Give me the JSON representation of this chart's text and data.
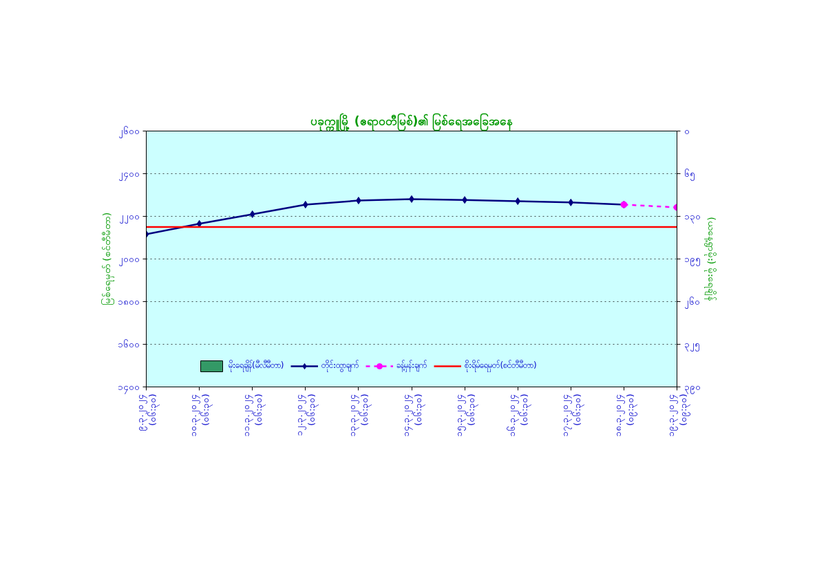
{
  "chart_data": {
    "type": "line",
    "title": "ပခုက္ကူမြို့ (ဧရာဝတီမြစ်)၏ မြစ်ရေအခြေအနေ",
    "ylabel": "မြစ်ရေမှတ် (စင်တီမီတာ)",
    "y2label": "(ယနေ့ရွာမိုး) မိုးရေချိန်",
    "categories": [
      "၉.၃.၂၀၂၄\n(၀၆:၃၀)",
      "၁၀.၃.၂၀၂၄\n(၀၆:၃၀)",
      "၁၁.၃.၂၀၂၄\n(၀၆:၃၀)",
      "၁၂.၃.၂၀၂၄\n(၀၆:၃၀)",
      "၁၃.၃.၂၀၂၄\n(၀၆:၃၀)",
      "၁၄.၃.၂၀၂၄\n(၀၆:၃၀)",
      "၁၅.၃.၂၀၂၄\n(၀၆:၃၀)",
      "၁၆.၃.၂၀၂၄\n(၀၆:၃၀)",
      "၁၇.၃.၂၀၂၄\n(၀၆:၃၀)",
      "၁၈.၃.၂၀၂၄\n(၀၉:၃၀)",
      "၁၉.၃.၂၀၂၄\n(၀၉:၃၀)"
    ],
    "ylim": [
      1400,
      2600
    ],
    "yticks": [
      {
        "value": 1400,
        "label": "၁၄၀၀"
      },
      {
        "value": 1600,
        "label": "၁၆၀၀"
      },
      {
        "value": 1800,
        "label": "၁၈၀၀"
      },
      {
        "value": 2000,
        "label": "၂၀၀၀"
      },
      {
        "value": 2200,
        "label": "၂၂၀၀"
      },
      {
        "value": 2400,
        "label": "၂၄၀၀"
      },
      {
        "value": 2600,
        "label": "၂၆၀၀"
      }
    ],
    "y2lim": [
      390,
      0
    ],
    "y2ticks": [
      {
        "value": 0,
        "label": "၀"
      },
      {
        "value": 65,
        "label": "၆၅"
      },
      {
        "value": 130,
        "label": "၁၃၀"
      },
      {
        "value": 195,
        "label": "၁၉၅"
      },
      {
        "value": 260,
        "label": "၂၆၀"
      },
      {
        "value": 325,
        "label": "၃၂၅"
      },
      {
        "value": 390,
        "label": "၃၉၀"
      }
    ],
    "grid": "y",
    "legend": "bottom",
    "series": [
      {
        "name": "မိုးရေချိန်(မီလီမီတာ)",
        "type": "bar",
        "color": "#339966",
        "values": [
          null,
          null,
          null,
          null,
          null,
          null,
          null,
          null,
          null,
          null,
          null
        ]
      },
      {
        "name": "တိုင်းထွာချက်",
        "color": "#000080",
        "marker": "diamond",
        "line_style": "solid",
        "values": [
          2116,
          2165,
          2210,
          2255,
          2274,
          2281,
          2277,
          2271,
          2265,
          2255,
          null
        ]
      },
      {
        "name": "ခန့်မှန်းချက်",
        "color": "#ff00ff",
        "marker": "circle",
        "line_style": "dashed",
        "values": [
          null,
          null,
          null,
          null,
          null,
          null,
          null,
          null,
          null,
          2255,
          2242
        ]
      },
      {
        "name": "စိုးရိမ်ရေမှတ်(စင်တီမီတာ)",
        "color": "#ff0000",
        "marker": "none",
        "line_style": "solid",
        "values": [
          2150,
          2150,
          2150,
          2150,
          2150,
          2150,
          2150,
          2150,
          2150,
          2150,
          2150
        ]
      }
    ]
  }
}
